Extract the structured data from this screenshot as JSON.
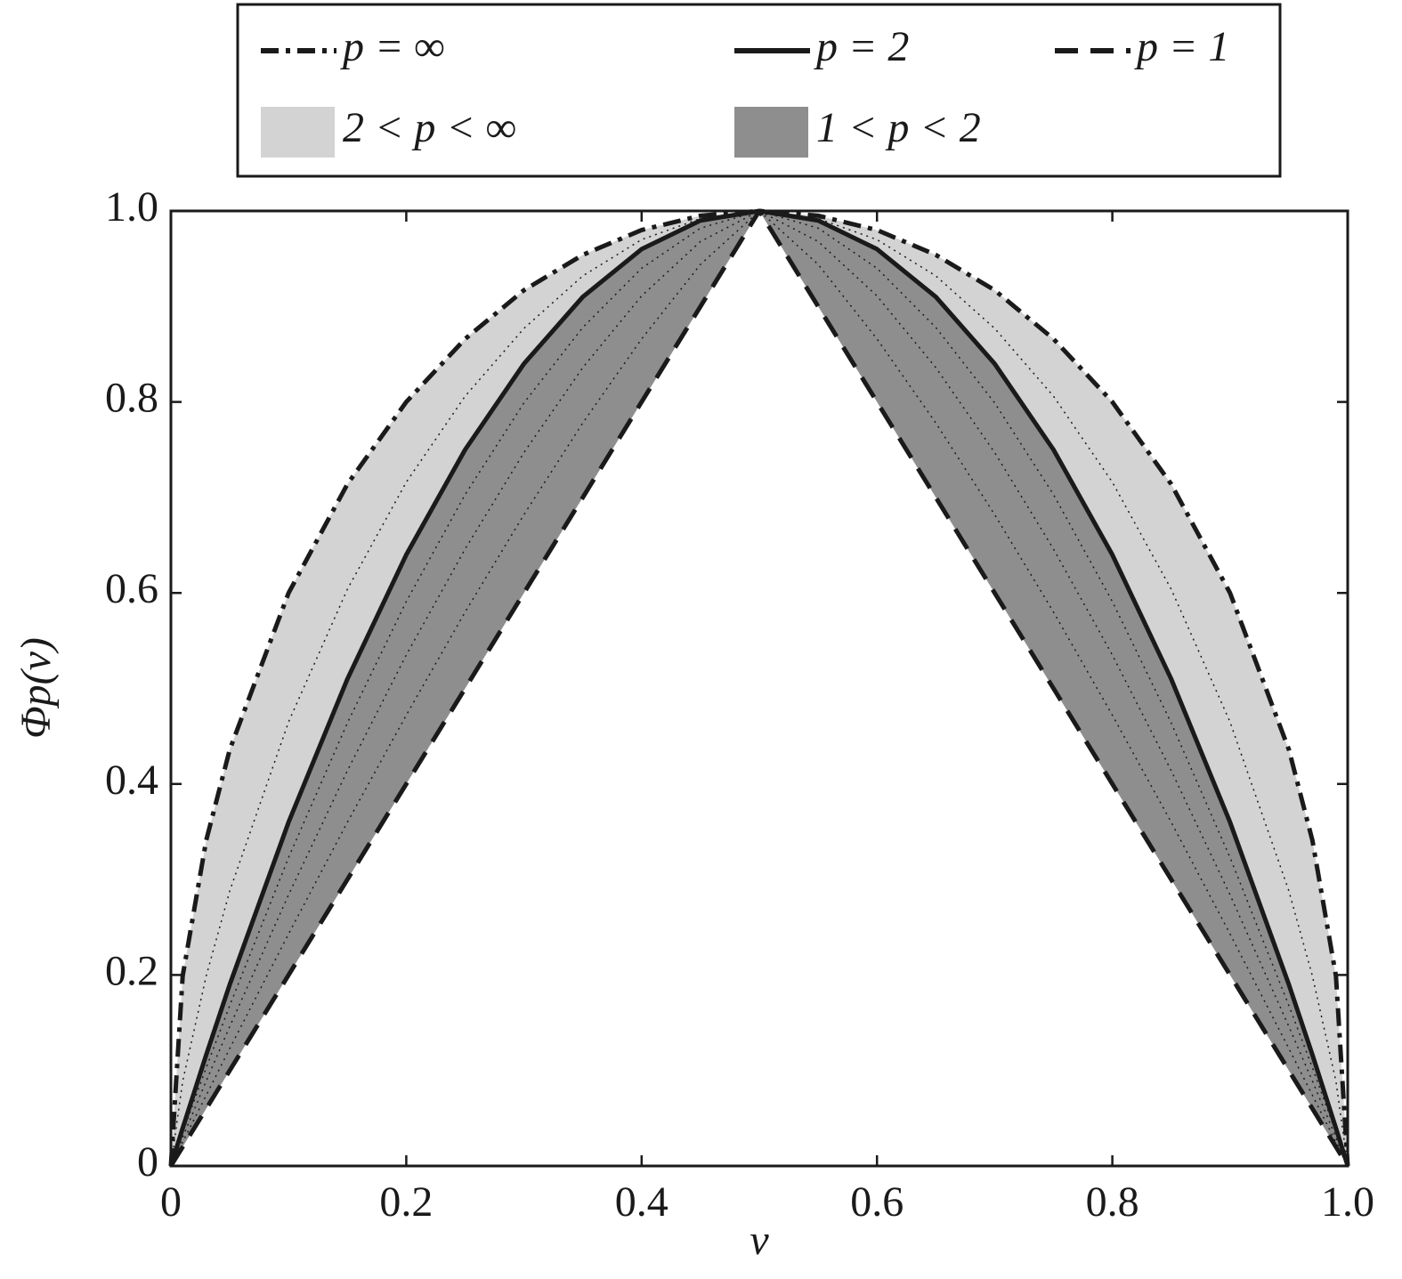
{
  "chart_data": {
    "type": "line",
    "x_label": "v",
    "y_label": "Φp(v)",
    "x": [
      0,
      0.01,
      0.03,
      0.05,
      0.1,
      0.15,
      0.2,
      0.25,
      0.3,
      0.35,
      0.4,
      0.45,
      0.5,
      0.55,
      0.6,
      0.65,
      0.7,
      0.75,
      0.8,
      0.85,
      0.9,
      0.95,
      0.97,
      0.99,
      1
    ],
    "series": [
      {
        "name": "p = ∞",
        "color": "#1a1a1a",
        "dash": "dashdot",
        "values": [
          0,
          0.199,
          0.341,
          0.436,
          0.6,
          0.714,
          0.8,
          0.866,
          0.917,
          0.954,
          0.98,
          0.995,
          1,
          0.995,
          0.98,
          0.954,
          0.917,
          0.866,
          0.8,
          0.714,
          0.6,
          0.436,
          0.341,
          0.199,
          0
        ]
      },
      {
        "name": "p = 2",
        "color": "#1a1a1a",
        "dash": "solid",
        "values": [
          0,
          0.0396,
          0.1164,
          0.19,
          0.36,
          0.51,
          0.64,
          0.75,
          0.84,
          0.91,
          0.96,
          0.99,
          1,
          0.99,
          0.96,
          0.91,
          0.84,
          0.75,
          0.64,
          0.51,
          0.36,
          0.19,
          0.1164,
          0.0396,
          0
        ]
      },
      {
        "name": "p = 1",
        "color": "#1a1a1a",
        "dash": "dashed",
        "values": [
          0,
          0.02,
          0.06,
          0.1,
          0.2,
          0.3,
          0.4,
          0.5,
          0.6,
          0.7,
          0.8,
          0.9,
          1,
          0.9,
          0.8,
          0.7,
          0.6,
          0.5,
          0.4,
          0.3,
          0.2,
          0.1,
          0.06,
          0.02,
          0
        ]
      },
      {
        "color": "#1a1a1a",
        "dash": "dotted",
        "values": [
          0,
          0.0888,
          0.199,
          0.288,
          0.465,
          0.604,
          0.716,
          0.806,
          0.877,
          0.932,
          0.97,
          0.992,
          1,
          0.992,
          0.97,
          0.932,
          0.877,
          0.806,
          0.716,
          0.604,
          0.465,
          0.288,
          0.199,
          0.0888,
          0
        ]
      },
      {
        "color": "#1a1a1a",
        "dash": "dotted",
        "values": [
          0,
          0.035,
          0.103,
          0.168,
          0.323,
          0.464,
          0.591,
          0.703,
          0.799,
          0.878,
          0.94,
          0.982,
          1,
          0.982,
          0.94,
          0.878,
          0.799,
          0.703,
          0.591,
          0.464,
          0.323,
          0.168,
          0.103,
          0.035,
          0
        ]
      },
      {
        "color": "#1a1a1a",
        "dash": "dotted",
        "values": [
          0,
          0.03,
          0.089,
          0.146,
          0.284,
          0.414,
          0.535,
          0.646,
          0.747,
          0.836,
          0.911,
          0.968,
          1,
          0.968,
          0.911,
          0.836,
          0.747,
          0.646,
          0.535,
          0.414,
          0.284,
          0.146,
          0.089,
          0.03,
          0
        ]
      },
      {
        "color": "#1a1a1a",
        "dash": "dotted",
        "values": [
          0,
          0.025,
          0.074,
          0.123,
          0.243,
          0.36,
          0.472,
          0.58,
          0.682,
          0.778,
          0.866,
          0.944,
          1,
          0.944,
          0.866,
          0.778,
          0.682,
          0.58,
          0.472,
          0.36,
          0.243,
          0.123,
          0.074,
          0.025,
          0
        ]
      }
    ],
    "bands": [
      {
        "name": "2 < p < ∞",
        "color": "#d3d3d3",
        "between": [
          0,
          1
        ]
      },
      {
        "name": "1 < p < 2",
        "color": "#8e8e8e",
        "between": [
          1,
          2
        ]
      }
    ],
    "xlim": [
      0,
      1
    ],
    "ylim": [
      0,
      1
    ],
    "xticks": [
      0,
      0.2,
      0.4,
      0.6,
      0.8,
      {
        "value": 1,
        "label": "1.0"
      }
    ],
    "yticks": [
      0,
      0.2,
      0.4,
      0.6,
      0.8,
      {
        "value": 1,
        "label": "1.0"
      }
    ],
    "grid": false,
    "legend": "top"
  }
}
